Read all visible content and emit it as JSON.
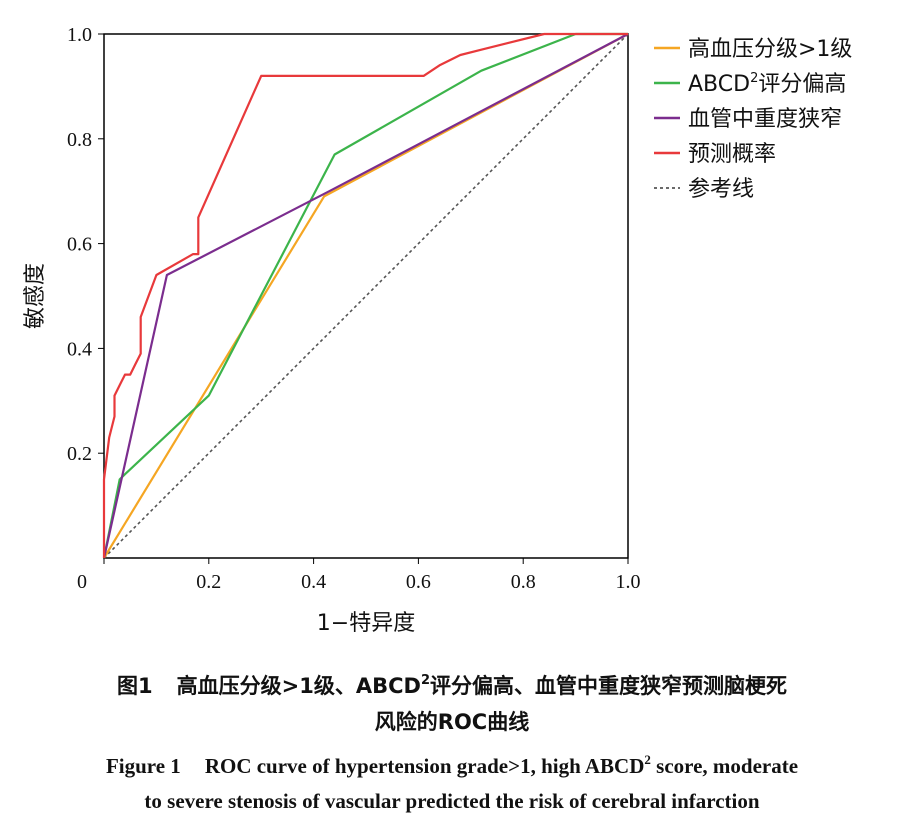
{
  "chart_data": {
    "type": "line",
    "ylabel": "敏感度",
    "xlabel": "1−特异度",
    "xlim": [
      0,
      1.0
    ],
    "ylim": [
      0,
      1.0
    ],
    "x_ticks": [
      "0",
      "0.2",
      "0.4",
      "0.6",
      "0.8",
      "1.0"
    ],
    "y_ticks": [
      "0.2",
      "0.4",
      "0.6",
      "0.8",
      "1.0"
    ],
    "grid": false,
    "legend_position": "outside-right-top",
    "series": [
      {
        "name": "高血压分级>1级",
        "color": "#f5a623",
        "dash": false,
        "points": [
          [
            0,
            0
          ],
          [
            0.42,
            0.69
          ],
          [
            1.0,
            1.0
          ]
        ]
      },
      {
        "name": "ABCD2评分偏高",
        "name_main": "ABCD",
        "name_sup": "2",
        "name_rest": "评分偏高",
        "color": "#3cb44b",
        "dash": false,
        "points": [
          [
            0,
            0
          ],
          [
            0.03,
            0.15
          ],
          [
            0.04,
            0.16
          ],
          [
            0.2,
            0.31
          ],
          [
            0.44,
            0.77
          ],
          [
            0.72,
            0.93
          ],
          [
            0.9,
            1.0
          ],
          [
            1.0,
            1.0
          ]
        ]
      },
      {
        "name": "血管中重度狭窄",
        "color": "#7b2d8e",
        "dash": false,
        "points": [
          [
            0,
            0
          ],
          [
            0.12,
            0.54
          ],
          [
            0.43,
            0.7
          ],
          [
            1.0,
            1.0
          ]
        ]
      },
      {
        "name": "预测概率",
        "color": "#e8393b",
        "dash": false,
        "points": [
          [
            0,
            0
          ],
          [
            0,
            0.15
          ],
          [
            0.01,
            0.23
          ],
          [
            0.02,
            0.27
          ],
          [
            0.02,
            0.31
          ],
          [
            0.03,
            0.33
          ],
          [
            0.04,
            0.35
          ],
          [
            0.05,
            0.35
          ],
          [
            0.06,
            0.37
          ],
          [
            0.07,
            0.39
          ],
          [
            0.07,
            0.46
          ],
          [
            0.1,
            0.54
          ],
          [
            0.17,
            0.58
          ],
          [
            0.18,
            0.58
          ],
          [
            0.18,
            0.65
          ],
          [
            0.3,
            0.92
          ],
          [
            0.61,
            0.92
          ],
          [
            0.64,
            0.94
          ],
          [
            0.68,
            0.96
          ],
          [
            0.72,
            0.97
          ],
          [
            0.84,
            1.0
          ],
          [
            1.0,
            1.0
          ]
        ]
      },
      {
        "name": "参考线",
        "color": "#555555",
        "dash": true,
        "points": [
          [
            0,
            0
          ],
          [
            1.0,
            1.0
          ]
        ]
      }
    ]
  },
  "caption": {
    "zh_label": "图1",
    "zh_line1_a": "高血压分级>1级、ABCD",
    "zh_line1_sup": "2",
    "zh_line1_b": "评分偏高、血管中重度狭窄预测脑梗死",
    "zh_line2": "风险的ROC曲线",
    "en_label": "Figure 1",
    "en_line1_a": "ROC curve of hypertension grade>1, high ABCD",
    "en_line1_sup": "2",
    "en_line1_b": " score, moderate",
    "en_line2": "to severe stenosis of vascular predicted the risk of cerebral infarction"
  }
}
